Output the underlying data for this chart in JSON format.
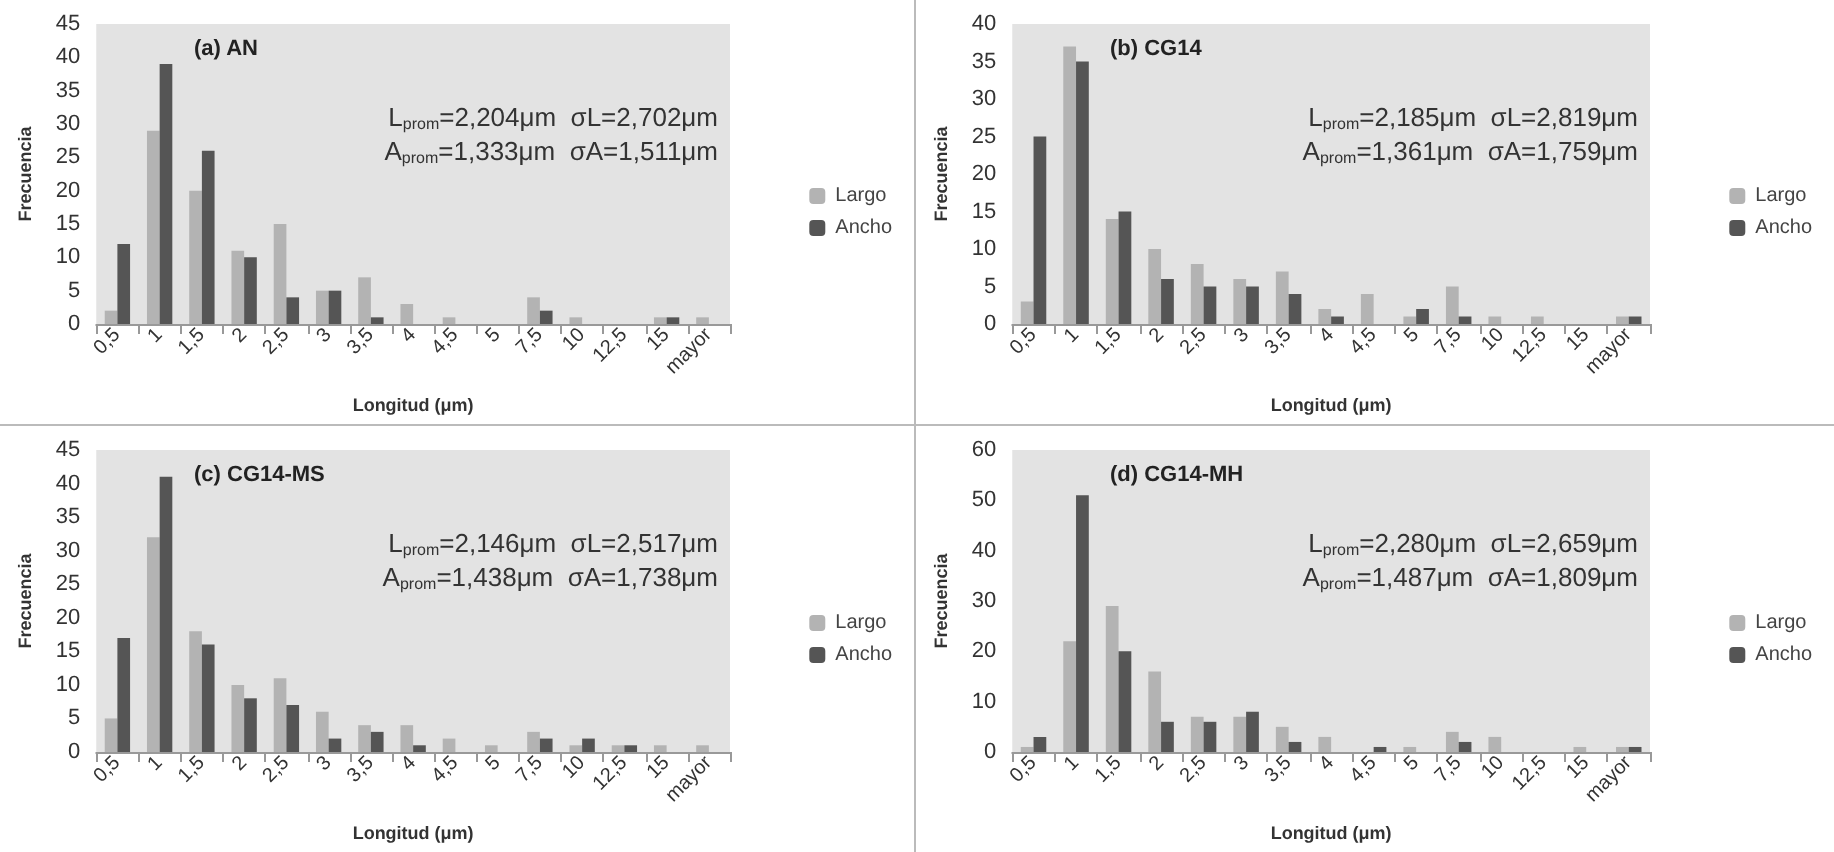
{
  "chart_data": [
    {
      "type": "bar",
      "title": "(a) AN",
      "xlabel": "Longitud (μm)",
      "ylabel": "Frecuencia",
      "annotations": [
        "L$_{prom}$=2,204μm  σL=2,702μm",
        "A$_{prom}$=1,333μm  σA=1,511μm"
      ],
      "categories": [
        "0,5",
        "1",
        "1,5",
        "2",
        "2,5",
        "3",
        "3,5",
        "4",
        "4,5",
        "5",
        "7,5",
        "10",
        "12,5",
        "15",
        "mayor"
      ],
      "series": [
        {
          "name": "Largo",
          "color": "#b3b3b3",
          "values": [
            2,
            29,
            20,
            11,
            15,
            5,
            7,
            3,
            1,
            0,
            4,
            1,
            0,
            1,
            1
          ]
        },
        {
          "name": "Ancho",
          "color": "#555555",
          "values": [
            12,
            39,
            26,
            10,
            4,
            5,
            1,
            0,
            0,
            0,
            2,
            0,
            0,
            1,
            0
          ]
        }
      ],
      "ylim": [
        0,
        45
      ],
      "yticks": [
        0,
        5,
        10,
        15,
        20,
        25,
        30,
        35,
        40,
        45
      ],
      "grid": false,
      "legend": "right"
    },
    {
      "type": "bar",
      "title": "(b) CG14",
      "xlabel": "Longitud (μm)",
      "ylabel": "Frecuencia",
      "annotations": [
        "L$_{prom}$=2,185μm  σL=2,819μm",
        "A$_{prom}$=1,361μm  σA=1,759μm"
      ],
      "categories": [
        "0,5",
        "1",
        "1,5",
        "2",
        "2,5",
        "3",
        "3,5",
        "4",
        "4,5",
        "5",
        "7,5",
        "10",
        "12,5",
        "15",
        "mayor"
      ],
      "series": [
        {
          "name": "Largo",
          "color": "#b3b3b3",
          "values": [
            3,
            37,
            14,
            10,
            8,
            6,
            7,
            2,
            4,
            1,
            5,
            1,
            1,
            0,
            1
          ]
        },
        {
          "name": "Ancho",
          "color": "#555555",
          "values": [
            25,
            35,
            15,
            6,
            5,
            5,
            4,
            1,
            0,
            2,
            1,
            0,
            0,
            0,
            1
          ]
        }
      ],
      "ylim": [
        0,
        40
      ],
      "yticks": [
        0,
        5,
        10,
        15,
        20,
        25,
        30,
        35,
        40
      ],
      "grid": false,
      "legend": "right"
    },
    {
      "type": "bar",
      "title": "(c) CG14-MS",
      "xlabel": "Longitud (μm)",
      "ylabel": "Frecuencia",
      "annotations": [
        "L$_{prom}$=2,146μm  σL=2,517μm",
        "A$_{prom}$=1,438μm  σA=1,738μm"
      ],
      "categories": [
        "0,5",
        "1",
        "1,5",
        "2",
        "2,5",
        "3",
        "3,5",
        "4",
        "4,5",
        "5",
        "7,5",
        "10",
        "12,5",
        "15",
        "mayor"
      ],
      "series": [
        {
          "name": "Largo",
          "color": "#b3b3b3",
          "values": [
            5,
            32,
            18,
            10,
            11,
            6,
            4,
            4,
            2,
            1,
            3,
            1,
            1,
            1,
            1
          ]
        },
        {
          "name": "Ancho",
          "color": "#555555",
          "values": [
            17,
            41,
            16,
            8,
            7,
            2,
            3,
            1,
            0,
            0,
            2,
            2,
            1,
            0,
            0
          ]
        }
      ],
      "ylim": [
        0,
        45
      ],
      "yticks": [
        0,
        5,
        10,
        15,
        20,
        25,
        30,
        35,
        40,
        45
      ],
      "grid": false,
      "legend": "right"
    },
    {
      "type": "bar",
      "title": "(d) CG14-MH",
      "xlabel": "Longitud (μm)",
      "ylabel": "Frecuencia",
      "annotations": [
        "L$_{prom}$=2,280μm  σL=2,659μm",
        "A$_{prom}$=1,487μm  σA=1,809μm"
      ],
      "categories": [
        "0,5",
        "1",
        "1,5",
        "2",
        "2,5",
        "3",
        "3,5",
        "4",
        "4,5",
        "5",
        "7,5",
        "10",
        "12,5",
        "15",
        "mayor"
      ],
      "series": [
        {
          "name": "Largo",
          "color": "#b3b3b3",
          "values": [
            1,
            22,
            29,
            16,
            7,
            7,
            5,
            3,
            0,
            1,
            4,
            3,
            0,
            1,
            1
          ]
        },
        {
          "name": "Ancho",
          "color": "#555555",
          "values": [
            3,
            51,
            20,
            6,
            6,
            8,
            2,
            0,
            1,
            0,
            2,
            0,
            0,
            0,
            1
          ]
        }
      ],
      "ylim": [
        0,
        60
      ],
      "yticks": [
        0,
        10,
        20,
        30,
        40,
        50,
        60
      ],
      "grid": false,
      "legend": "right"
    }
  ]
}
